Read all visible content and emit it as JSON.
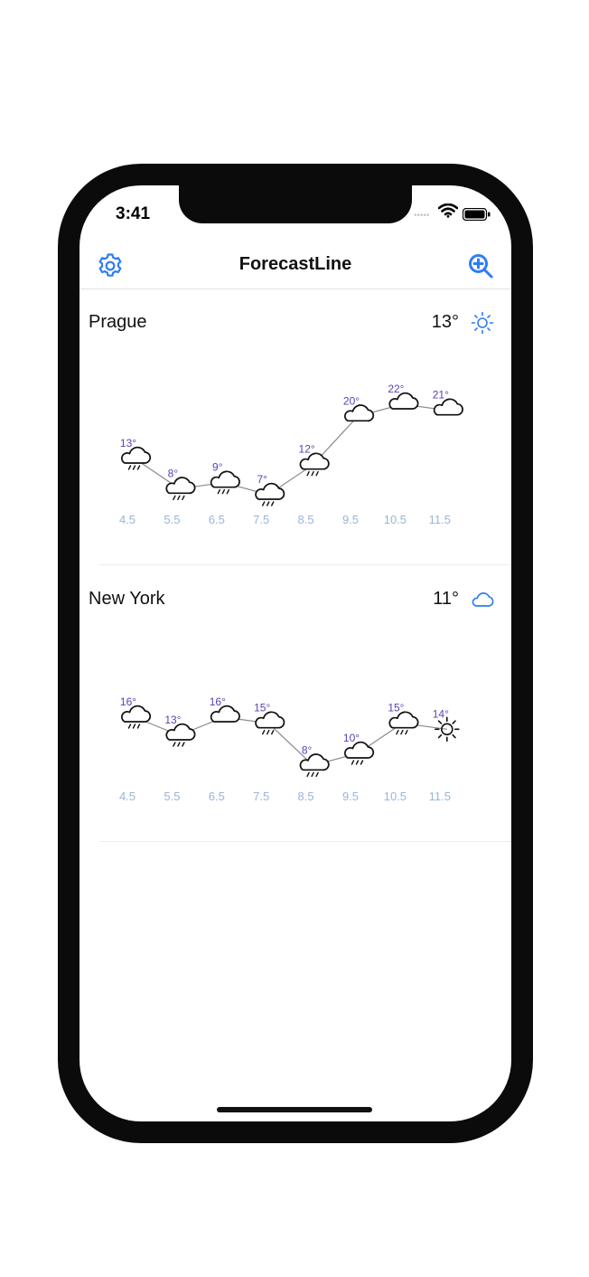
{
  "status_bar": {
    "time": "3:41"
  },
  "nav": {
    "title": "ForecastLine",
    "settings_icon": "gear-icon",
    "zoom_icon": "zoom-in-icon"
  },
  "colors": {
    "accent": "#2f7cf6",
    "temp_label": "#5b3fb8",
    "date_label": "#9ab4dc",
    "line": "#8a8a8a"
  },
  "cities": [
    {
      "name": "Prague",
      "current_temp": "13°",
      "current_icon": "sun-icon",
      "forecast": [
        {
          "date": "4.5",
          "temp": 13,
          "label": "13°",
          "icon": "rain"
        },
        {
          "date": "5.5",
          "temp": 8,
          "label": "8°",
          "icon": "rain"
        },
        {
          "date": "6.5",
          "temp": 9,
          "label": "9°",
          "icon": "rain"
        },
        {
          "date": "7.5",
          "temp": 7,
          "label": "7°",
          "icon": "rain"
        },
        {
          "date": "8.5",
          "temp": 12,
          "label": "12°",
          "icon": "rain"
        },
        {
          "date": "9.5",
          "temp": 20,
          "label": "20°",
          "icon": "cloud"
        },
        {
          "date": "10.5",
          "temp": 22,
          "label": "22°",
          "icon": "cloud"
        },
        {
          "date": "11.5",
          "temp": 21,
          "label": "21°",
          "icon": "cloud"
        }
      ]
    },
    {
      "name": "New York",
      "current_temp": "11°",
      "current_icon": "cloud-icon",
      "forecast": [
        {
          "date": "4.5",
          "temp": 16,
          "label": "16°",
          "icon": "rain"
        },
        {
          "date": "5.5",
          "temp": 13,
          "label": "13°",
          "icon": "rain"
        },
        {
          "date": "6.5",
          "temp": 16,
          "label": "16°",
          "icon": "cloud"
        },
        {
          "date": "7.5",
          "temp": 15,
          "label": "15°",
          "icon": "rain"
        },
        {
          "date": "8.5",
          "temp": 8,
          "label": "8°",
          "icon": "rain"
        },
        {
          "date": "9.5",
          "temp": 10,
          "label": "10°",
          "icon": "rain"
        },
        {
          "date": "10.5",
          "temp": 15,
          "label": "15°",
          "icon": "rain"
        },
        {
          "date": "11.5",
          "temp": 14,
          "label": "14°",
          "icon": "sun"
        }
      ]
    }
  ]
}
